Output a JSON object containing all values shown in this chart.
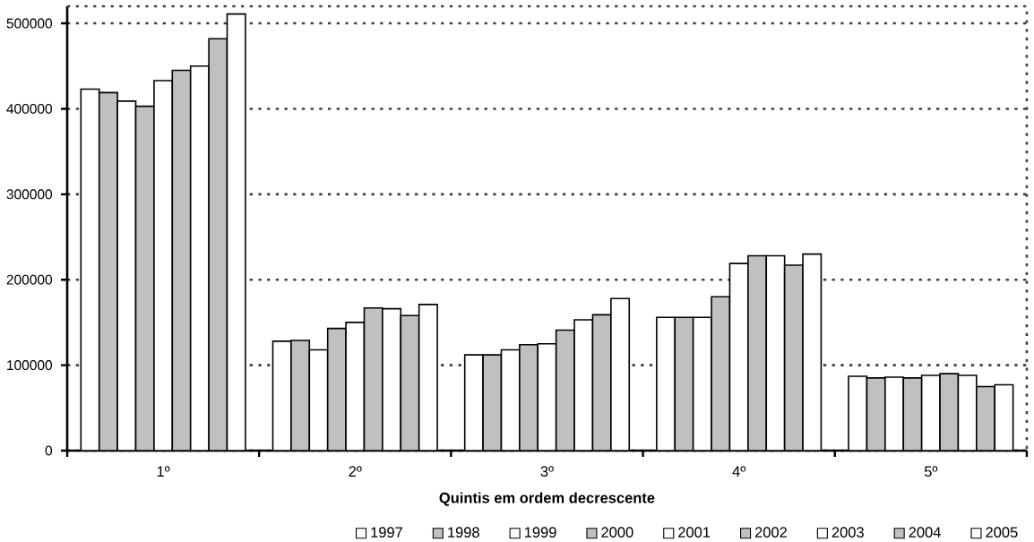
{
  "chart_data": {
    "type": "bar",
    "xlabel": "Quintis em ordem decrescente",
    "categories": [
      "1º",
      "2º",
      "3º",
      "4º",
      "5º"
    ],
    "series": [
      {
        "name": "1997",
        "color": "#ffffff",
        "values": [
          423000,
          128000,
          112000,
          156000,
          87000
        ]
      },
      {
        "name": "1998",
        "color": "#c0c0c0",
        "values": [
          419000,
          129000,
          112000,
          156000,
          85000
        ]
      },
      {
        "name": "1999",
        "color": "#ffffff",
        "values": [
          409000,
          118000,
          118000,
          156000,
          86000
        ]
      },
      {
        "name": "2000",
        "color": "#c0c0c0",
        "values": [
          403000,
          143000,
          124000,
          180000,
          85000
        ]
      },
      {
        "name": "2001",
        "color": "#ffffff",
        "values": [
          433000,
          150000,
          125000,
          219000,
          88000
        ]
      },
      {
        "name": "2002",
        "color": "#c0c0c0",
        "values": [
          445000,
          167000,
          141000,
          228000,
          90000
        ]
      },
      {
        "name": "2003",
        "color": "#ffffff",
        "values": [
          450000,
          166000,
          153000,
          228000,
          88000
        ]
      },
      {
        "name": "2004",
        "color": "#c0c0c0",
        "values": [
          482000,
          158000,
          159000,
          217000,
          75000
        ]
      },
      {
        "name": "2005",
        "color": "#ffffff",
        "values": [
          511000,
          171000,
          178000,
          230000,
          77000
        ]
      }
    ],
    "ylim": [
      0,
      520000
    ],
    "yticks": [
      0,
      100000,
      200000,
      300000,
      400000,
      500000
    ],
    "grid": "y",
    "legend": "bottom"
  }
}
